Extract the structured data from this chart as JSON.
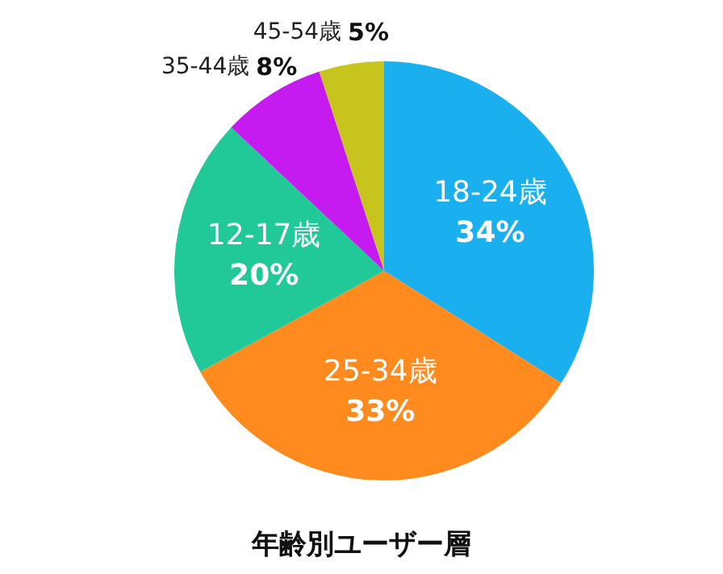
{
  "chart_data": {
    "type": "pie",
    "title": "年齢別ユーザー層",
    "categories": [
      "18-24歳",
      "25-34歳",
      "12-17歳",
      "35-44歳",
      "45-54歳"
    ],
    "values": [
      34,
      33,
      20,
      8,
      5
    ],
    "value_labels": [
      "34%",
      "33%",
      "20%",
      "8%",
      "5%"
    ],
    "colors": [
      "#1ab0f0",
      "#ff8a1e",
      "#20c997",
      "#c51bf0",
      "#c8c41e"
    ]
  }
}
